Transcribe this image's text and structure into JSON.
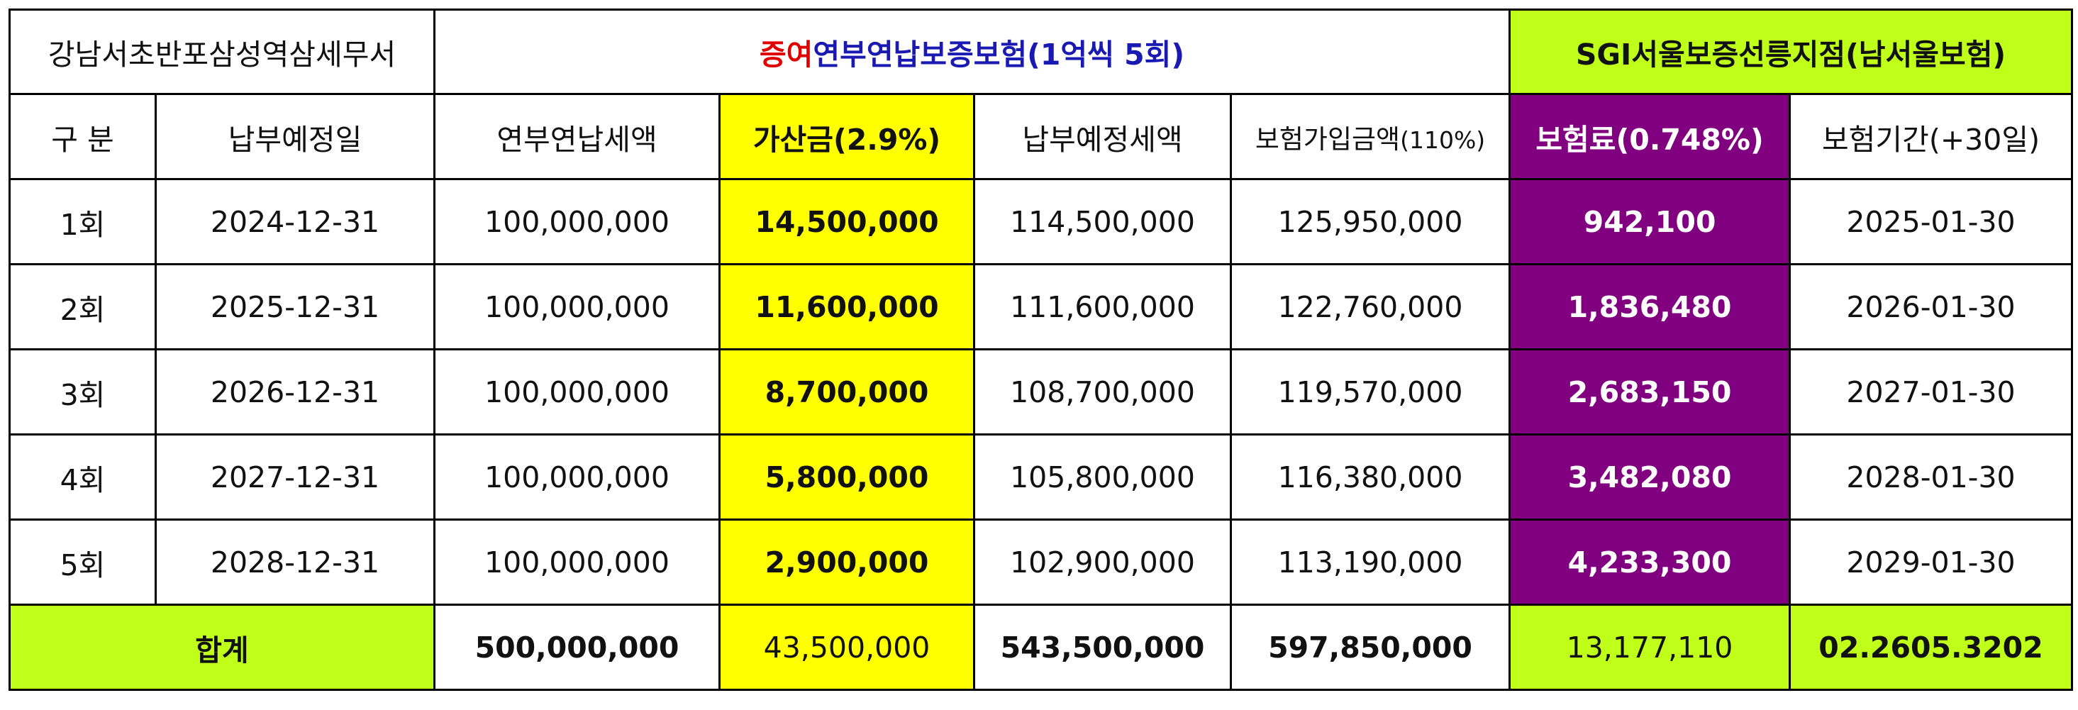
{
  "title_row": {
    "office": "강남서초반포삼성역삼세무서",
    "product_red": "증여",
    "product_blue": "연부연납보증보험(1억씩 5회)",
    "agency": "SGI서울보증선릉지점(남서울보험)"
  },
  "headers": {
    "division": "구 분",
    "due_date": "납부예정일",
    "installment_tax": "연부연납세액",
    "surcharge": "가산금(2.9%)",
    "due_tax": "납부예정세액",
    "insured_main": "보험가입금액",
    "insured_pct": "(110%)",
    "premium": "보험료(0.748%)",
    "period_main": "보험기간",
    "period_extra": "(+30일)"
  },
  "rows": [
    {
      "round": "1회",
      "due_date": "2024-12-31",
      "installment": "100,000,000",
      "surcharge": "14,500,000",
      "due_tax": "114,500,000",
      "insured": "125,950,000",
      "premium": "942,100",
      "period": "2025-01-30"
    },
    {
      "round": "2회",
      "due_date": "2025-12-31",
      "installment": "100,000,000",
      "surcharge": "11,600,000",
      "due_tax": "111,600,000",
      "insured": "122,760,000",
      "premium": "1,836,480",
      "period": "2026-01-30"
    },
    {
      "round": "3회",
      "due_date": "2026-12-31",
      "installment": "100,000,000",
      "surcharge": "8,700,000",
      "due_tax": "108,700,000",
      "insured": "119,570,000",
      "premium": "2,683,150",
      "period": "2027-01-30"
    },
    {
      "round": "4회",
      "due_date": "2027-12-31",
      "installment": "100,000,000",
      "surcharge": "5,800,000",
      "due_tax": "105,800,000",
      "insured": "116,380,000",
      "premium": "3,482,080",
      "period": "2028-01-30"
    },
    {
      "round": "5회",
      "due_date": "2028-12-31",
      "installment": "100,000,000",
      "surcharge": "2,900,000",
      "due_tax": "102,900,000",
      "insured": "113,190,000",
      "premium": "4,233,300",
      "period": "2029-01-30"
    }
  ],
  "total": {
    "label": "합계",
    "installment": "500,000,000",
    "surcharge": "43,500,000",
    "due_tax": "543,500,000",
    "insured": "597,850,000",
    "premium": "13,177,110",
    "phone": "02.2605.3202"
  },
  "colors": {
    "yellow": "#ffff00",
    "purple": "#800080",
    "lime": "#bfff1a",
    "red": "#e00000",
    "blue": "#1a1ab3"
  }
}
